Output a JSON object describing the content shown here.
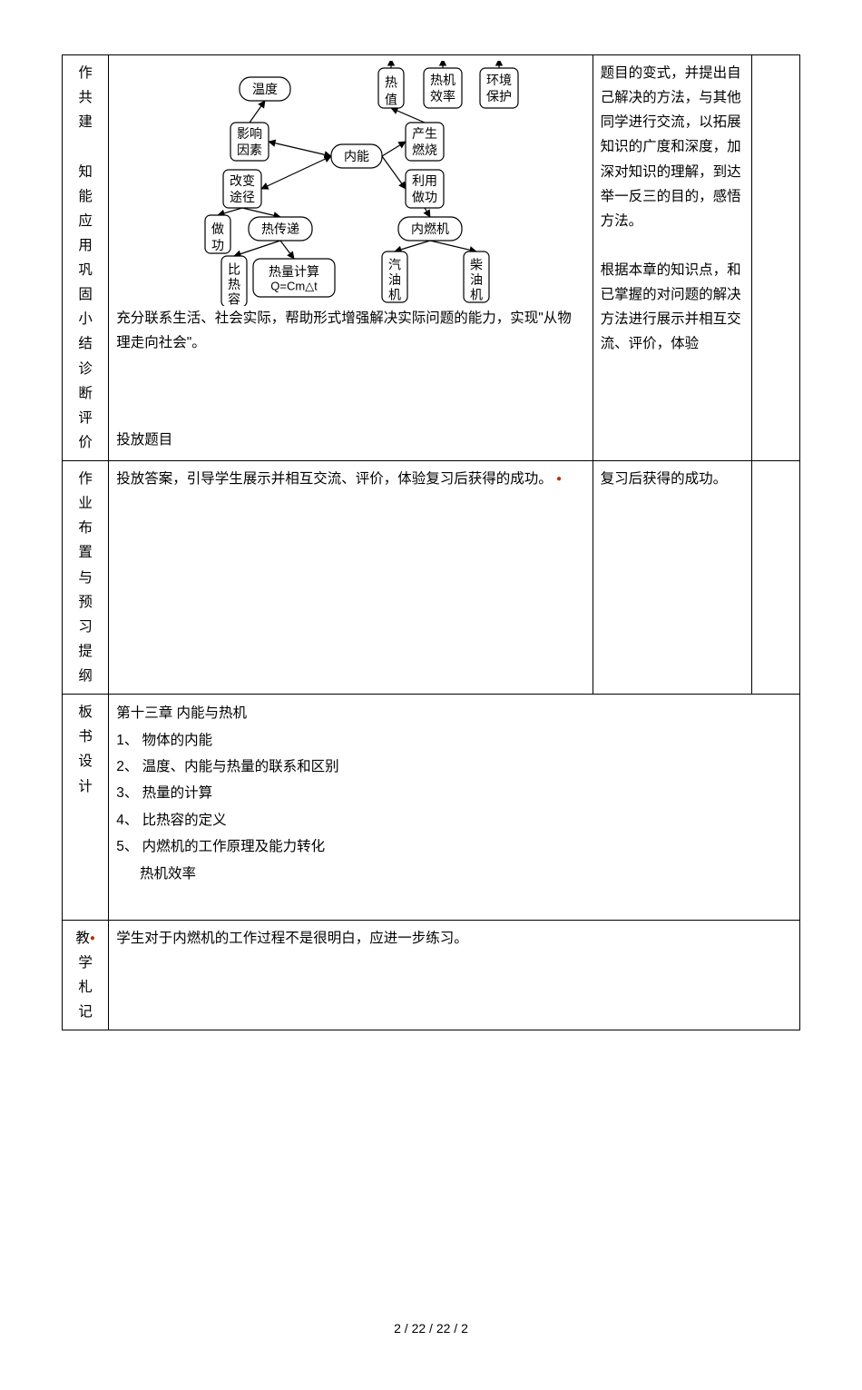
{
  "row1": {
    "label": "作共建知能应用巩固小结诊断评价",
    "bodyText": "充分联系生活、社会实际，帮助形式增强解决实际问题的能力，实现\"从物理走向社会\"。",
    "bodyText2": "投放题目",
    "notes": "题目的变式，并提出自己解决的方法，与其他同学进行交流，以拓展知识的广度和深度，加深对知识的理解，到达举一反三的目的，感悟方法。\n\n根据本章的知识点，和已掌握的对问题的解决方法进行展示并相互交流、评价，体验"
  },
  "row2": {
    "label": "作业布置与预习提纲",
    "bodyText": "投放答案，引导学生展示并相互交流、评价，体验复习后获得的成功。",
    "notes": "复习后获得的成功。"
  },
  "row3": {
    "label": "板书设计",
    "title": "第十三章  内能与热机",
    "items": [
      "1、  物体的内能",
      "2、  温度、内能与热量的联系和区别",
      "3、  热量的计算",
      "4、  比热容的定义",
      "5、  内燃机的工作原理及能力转化",
      "      热机效率"
    ]
  },
  "row4": {
    "label": "教学札记",
    "bodyText": "学生对于内燃机的工作过程不是很明白，应进一步练习。"
  },
  "concept": {
    "nodes": {
      "temp": "温度",
      "heatVal": "热值",
      "engEff": "热机效率",
      "env": "环境保护",
      "factors": "影响因素",
      "innerE": "内能",
      "prodBurn": "产生燃烧",
      "changePath": "改变途径",
      "useWork": "利用做功",
      "doWork": "做功",
      "heatTrans": "热传递",
      "intEng": "内燃机",
      "spHeat": "比热容",
      "heatCalc": "热量计算",
      "gasEng": "汽油机",
      "dieselEng": "柴油机",
      "formula": "Q=Cm△t"
    },
    "style": {
      "bg": "#ffffff",
      "stroke": "#000000",
      "fill": "#ffffff",
      "fontSize": 14,
      "strokeWidth": 1.2,
      "arrowLen": 7
    }
  },
  "footer": "2 / 22 / 22 / 2"
}
